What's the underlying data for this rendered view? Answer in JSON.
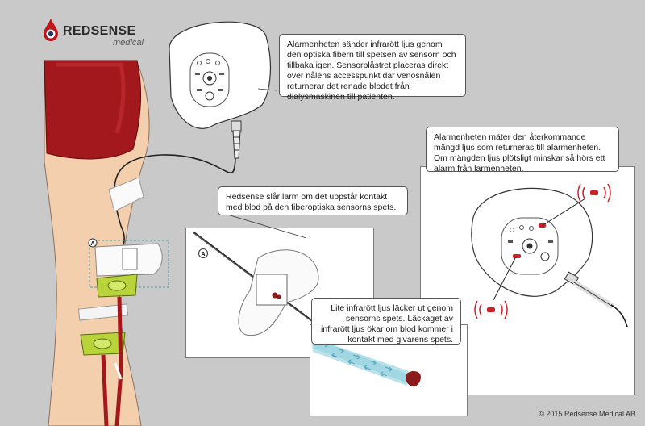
{
  "brand": {
    "name": "REDSENSE",
    "sub": "medical",
    "color": "#c0151a"
  },
  "labels": {
    "marker_a_leg": "A",
    "marker_a_panel": "A"
  },
  "callouts": {
    "top_right": "Alarmenheten sänder infrarött ljus genom den optiska fibern till spetsen av sensorn och tillbaka igen. Sensorplåstret placeras direkt över nålens accesspunkt där venösnålen returnerar det renade blodet från dialysmaskinen till patienten.",
    "middle_right": "Alarmenheten mäter den återkommande mängd ljus som returneras till alarmenheten. Om mängden ljus plötsligt minskar så hörs ett alarm från larmenheten.",
    "middle_left": "Redsense slår larm om det uppstår kontakt med blod på den fiberoptiska sensorns spets.",
    "bottom": "Lite infrarött ljus läcker ut genom sensorns spets. Läckaget av infrarött ljus ökar om blod kommer i kontakt med givarens spets."
  },
  "copyright": "© 2015 Redsense Medical AB",
  "colors": {
    "background": "#c9c9c9",
    "shorts": "#a3181c",
    "skin": "#f3cfae",
    "alarm_red": "#d02027",
    "sensor_green": "#b8d43a",
    "light_beam": "#a9dbe5"
  }
}
